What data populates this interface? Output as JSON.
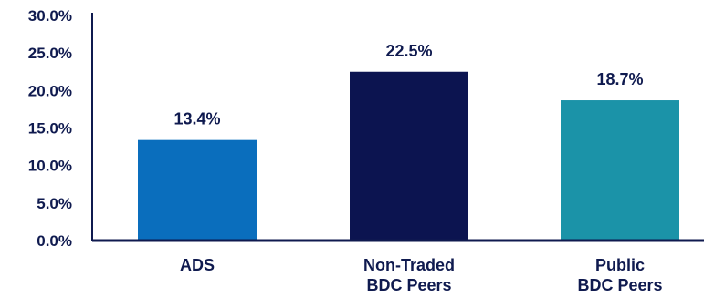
{
  "chart_data": {
    "type": "bar",
    "categories": [
      [
        "ADS"
      ],
      [
        "Non-Traded",
        "BDC Peers"
      ],
      [
        "Public",
        "BDC Peers"
      ]
    ],
    "values": [
      13.4,
      22.5,
      18.7
    ],
    "data_labels": [
      "13.4%",
      "22.5%",
      "18.7%"
    ],
    "colors": [
      "#0a6ebd",
      "#0c1450",
      "#1b93a8"
    ],
    "ylim": [
      0,
      30
    ],
    "y_ticks": [
      0,
      5,
      10,
      15,
      20,
      25,
      30
    ],
    "y_tick_labels": [
      "0.0%",
      "5.0%",
      "10.0%",
      "15.0%",
      "20.0%",
      "25.0%",
      "30.0%"
    ],
    "grid": false,
    "title": "",
    "xlabel": "",
    "ylabel": ""
  }
}
